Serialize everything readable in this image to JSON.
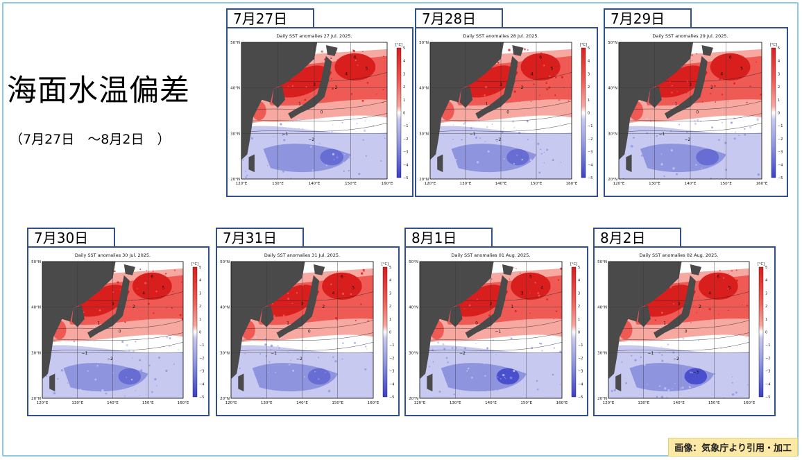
{
  "title": "海面水温偏差",
  "period": "（7月27日　～8月2日　）",
  "credit": "画像：気象庁より引用・加工",
  "map_common": {
    "lat_labels": [
      "50°N",
      "40°N",
      "30°N",
      "20°N"
    ],
    "lon_labels": [
      "120°E",
      "130°E",
      "140°E",
      "150°E",
      "160°E"
    ],
    "colorbar_unit": "[°C]",
    "colorbar_ticks": [
      "5",
      "4",
      "3",
      "2",
      "1",
      "0",
      "−1",
      "−2",
      "−3",
      "−4",
      "−5"
    ],
    "colors": {
      "land": "#4a4a4a",
      "warm_strong": "#d91e1e",
      "warm": "#ef5a55",
      "warm_light": "#f7a8a0",
      "neutral": "#ffffff",
      "cool_light": "#c7c9f0",
      "cool": "#8e94de",
      "cool_strong": "#3a3fc8"
    }
  },
  "panels": [
    {
      "date": "7月27日",
      "map_title": "Daily SST anomalies 27 Jul. 2025.",
      "labels": [
        "6",
        "5",
        "4",
        "3",
        "2",
        "1",
        "0",
        "−1",
        "−2"
      ]
    },
    {
      "date": "7月28日",
      "map_title": "Daily SST anomalies 28 Jul. 2025.",
      "labels": [
        "6",
        "5",
        "4",
        "3",
        "2",
        "1",
        "0",
        "−1",
        "−2"
      ]
    },
    {
      "date": "7月29日",
      "map_title": "Daily SST anomalies 29 Jul. 2025.",
      "labels": [
        "6",
        "5",
        "4",
        "3",
        "2",
        "1",
        "0",
        "−1",
        "−2"
      ]
    },
    {
      "date": "7月30日",
      "map_title": "Daily SST anomalies 30 Jul. 2025.",
      "labels": [
        "6",
        "5",
        "4",
        "3",
        "2",
        "1",
        "0",
        "−1",
        "−2"
      ]
    },
    {
      "date": "7月31日",
      "map_title": "Daily SST anomalies 31 Jul. 2025.",
      "labels": [
        "6",
        "5",
        "4",
        "3",
        "2",
        "1",
        "0",
        "−1",
        "−2"
      ]
    },
    {
      "date": "8月1日",
      "map_title": "Daily SST anomalies 01 Aug. 2025.",
      "labels": [
        "5",
        "4",
        "3",
        "2",
        "1",
        "0",
        "−1",
        "−2"
      ]
    },
    {
      "date": "8月2日",
      "map_title": "Daily SST anomalies 02 Aug. 2025.",
      "labels": [
        "6",
        "5",
        "4",
        "3",
        "2",
        "1",
        "0",
        "−1",
        "−2",
        "−3"
      ]
    }
  ]
}
